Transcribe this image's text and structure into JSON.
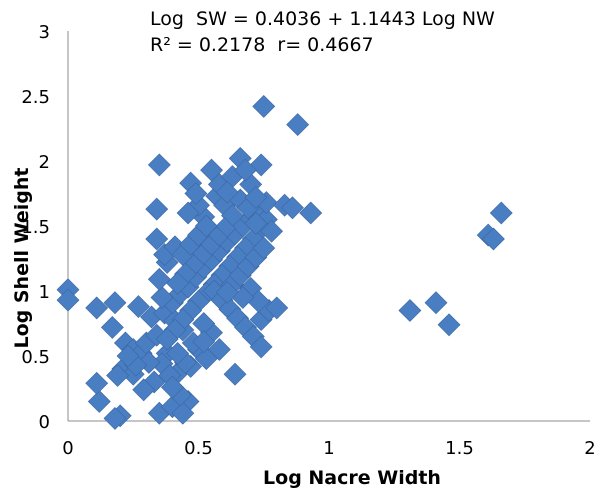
{
  "chart_data": {
    "type": "scatter",
    "title": "",
    "equation_line1": "Log  SW = 0.4036 + 1.1443 Log NW",
    "equation_line2": "R² = 0.2178  r= 0.4667",
    "xlabel": "Log Nacre Width",
    "ylabel": "Log Shell Weight",
    "xlim": [
      0,
      2
    ],
    "ylim": [
      0,
      3
    ],
    "x_ticks": [
      "0",
      "0.5",
      "1",
      "1.5",
      "2"
    ],
    "y_ticks": [
      "0",
      "0.5",
      "1",
      "1.5",
      "2",
      "2.5",
      "3"
    ],
    "grid": false,
    "legend": "none",
    "marker": "diamond",
    "marker_color": "#4A7EC2",
    "points": [
      [
        0.0,
        1.01
      ],
      [
        0.0,
        0.93
      ],
      [
        0.11,
        0.87
      ],
      [
        0.18,
        0.91
      ],
      [
        0.17,
        0.72
      ],
      [
        0.22,
        0.6
      ],
      [
        0.25,
        0.55
      ],
      [
        0.21,
        0.4
      ],
      [
        0.25,
        0.36
      ],
      [
        0.28,
        0.52
      ],
      [
        0.3,
        0.6
      ],
      [
        0.27,
        0.88
      ],
      [
        0.32,
        0.8
      ],
      [
        0.34,
        0.66
      ],
      [
        0.37,
        0.83
      ],
      [
        0.38,
        0.52
      ],
      [
        0.36,
        0.44
      ],
      [
        0.33,
        0.3
      ],
      [
        0.29,
        0.24
      ],
      [
        0.35,
        0.06
      ],
      [
        0.4,
        0.11
      ],
      [
        0.46,
        0.15
      ],
      [
        0.44,
        0.06
      ],
      [
        0.2,
        0.04
      ],
      [
        0.18,
        0.02
      ],
      [
        0.12,
        0.15
      ],
      [
        0.11,
        0.29
      ],
      [
        0.19,
        0.35
      ],
      [
        0.42,
        0.37
      ],
      [
        0.47,
        0.42
      ],
      [
        0.5,
        0.55
      ],
      [
        0.53,
        0.48
      ],
      [
        0.48,
        0.6
      ],
      [
        0.44,
        0.7
      ],
      [
        0.41,
        0.77
      ],
      [
        0.4,
        0.91
      ],
      [
        0.43,
        0.98
      ],
      [
        0.46,
        1.03
      ],
      [
        0.49,
        1.11
      ],
      [
        0.52,
        1.18
      ],
      [
        0.55,
        1.24
      ],
      [
        0.58,
        1.31
      ],
      [
        0.61,
        1.38
      ],
      [
        0.64,
        1.44
      ],
      [
        0.67,
        1.5
      ],
      [
        0.7,
        1.56
      ],
      [
        0.73,
        1.62
      ],
      [
        0.76,
        1.55
      ],
      [
        0.74,
        1.48
      ],
      [
        0.71,
        1.4
      ],
      [
        0.68,
        1.33
      ],
      [
        0.65,
        1.26
      ],
      [
        0.62,
        1.19
      ],
      [
        0.59,
        1.12
      ],
      [
        0.56,
        1.05
      ],
      [
        0.53,
        0.98
      ],
      [
        0.5,
        0.92
      ],
      [
        0.47,
        0.85
      ],
      [
        0.44,
        0.78
      ],
      [
        0.41,
        0.7
      ],
      [
        0.38,
        0.63
      ],
      [
        0.36,
        0.95
      ],
      [
        0.35,
        1.09
      ],
      [
        0.38,
        1.22
      ],
      [
        0.34,
        1.4
      ],
      [
        0.34,
        1.63
      ],
      [
        0.35,
        1.97
      ],
      [
        0.47,
        1.83
      ],
      [
        0.55,
        1.93
      ],
      [
        0.66,
        2.02
      ],
      [
        0.7,
        1.82
      ],
      [
        0.74,
        1.97
      ],
      [
        0.76,
        1.68
      ],
      [
        0.83,
        1.66
      ],
      [
        0.86,
        1.64
      ],
      [
        0.93,
        1.6
      ],
      [
        0.88,
        2.28
      ],
      [
        0.75,
        2.42
      ],
      [
        0.52,
        1.57
      ],
      [
        0.5,
        1.66
      ],
      [
        0.57,
        1.73
      ],
      [
        0.6,
        1.66
      ],
      [
        0.63,
        1.58
      ],
      [
        0.66,
        1.7
      ],
      [
        0.69,
        1.64
      ],
      [
        0.72,
        1.52
      ],
      [
        0.6,
        1.48
      ],
      [
        0.57,
        1.41
      ],
      [
        0.54,
        1.34
      ],
      [
        0.51,
        1.27
      ],
      [
        0.48,
        1.2
      ],
      [
        0.45,
        1.13
      ],
      [
        0.42,
        1.06
      ],
      [
        0.56,
        1.0
      ],
      [
        0.59,
        0.93
      ],
      [
        0.62,
        0.86
      ],
      [
        0.65,
        0.79
      ],
      [
        0.68,
        0.72
      ],
      [
        0.71,
        0.65
      ],
      [
        0.74,
        0.78
      ],
      [
        0.77,
        0.85
      ],
      [
        0.8,
        0.87
      ],
      [
        0.74,
        0.57
      ],
      [
        0.64,
        0.36
      ],
      [
        0.58,
        0.55
      ],
      [
        0.55,
        0.68
      ],
      [
        0.52,
        0.75
      ],
      [
        0.63,
        1.05
      ],
      [
        0.66,
        1.12
      ],
      [
        0.69,
        1.19
      ],
      [
        0.72,
        1.26
      ],
      [
        0.75,
        1.33
      ],
      [
        0.7,
        1.02
      ],
      [
        0.73,
        0.92
      ],
      [
        0.67,
        0.95
      ],
      [
        0.61,
        0.99
      ],
      [
        0.45,
        0.45
      ],
      [
        0.42,
        0.52
      ],
      [
        0.39,
        0.35
      ],
      [
        0.31,
        0.45
      ],
      [
        0.26,
        0.43
      ],
      [
        0.23,
        0.5
      ],
      [
        0.37,
        1.28
      ],
      [
        0.41,
        1.34
      ],
      [
        0.44,
        1.28
      ],
      [
        0.47,
        1.36
      ],
      [
        0.5,
        1.43
      ],
      [
        0.53,
        1.5
      ],
      [
        0.46,
        1.6
      ],
      [
        0.49,
        1.75
      ],
      [
        0.58,
        1.82
      ],
      [
        0.63,
        1.88
      ],
      [
        0.68,
        1.93
      ],
      [
        0.61,
        1.76
      ],
      [
        0.72,
        1.72
      ],
      [
        0.78,
        1.46
      ],
      [
        0.43,
        0.2
      ],
      [
        0.4,
        0.26
      ],
      [
        0.52,
        0.61
      ],
      [
        1.31,
        0.85
      ],
      [
        1.41,
        0.91
      ],
      [
        1.46,
        0.74
      ],
      [
        1.61,
        1.43
      ],
      [
        1.63,
        1.4
      ],
      [
        1.66,
        1.6
      ]
    ]
  }
}
